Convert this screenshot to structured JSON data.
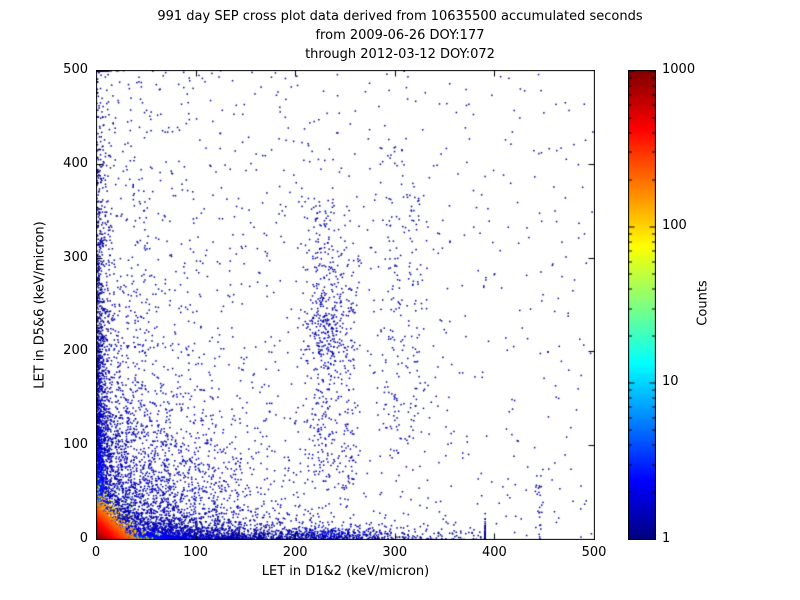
{
  "chart_data": {
    "type": "scatter",
    "title": "991 day SEP cross plot data derived from 10635500 accumulated seconds",
    "subtitle": [
      "from 2009-06-26 DOY:177",
      "through 2012-03-12 DOY:072"
    ],
    "xlabel": "LET in D1&2 (keV/micron)",
    "ylabel": "LET in D5&6 (keV/micron)",
    "xlim": [
      0,
      500
    ],
    "ylim": [
      0,
      500
    ],
    "xticks": [
      0,
      100,
      200,
      300,
      400,
      500
    ],
    "yticks": [
      0,
      100,
      200,
      300,
      400,
      500
    ],
    "grid": false,
    "background": "#ffffff",
    "axis_color": "#000000",
    "seed": 1337,
    "colorbar": {
      "label": "Counts",
      "scale": "log",
      "range": [
        1,
        1000
      ],
      "tick_values": [
        1000,
        100,
        10,
        1
      ],
      "tick_labels": [
        "1000",
        "100",
        "10",
        "1"
      ],
      "colormap": "jet",
      "jet_stops": [
        {
          "pos": 0.0,
          "color": "#00007f"
        },
        {
          "pos": 0.125,
          "color": "#0000ff"
        },
        {
          "pos": 0.375,
          "color": "#00ffff"
        },
        {
          "pos": 0.625,
          "color": "#ffff00"
        },
        {
          "pos": 0.875,
          "color": "#ff0000"
        },
        {
          "pos": 1.0,
          "color": "#7f0000"
        }
      ]
    },
    "density_features": [
      {
        "type": "uniform",
        "count": 650
      },
      {
        "type": "expx_uniformy",
        "count": 420,
        "scale_x": 170
      },
      {
        "type": "cloud",
        "count": 2500,
        "scale_x": 62,
        "scale_y": 62
      },
      {
        "type": "streak",
        "x": 22,
        "sx": 1.6,
        "yscale": 70,
        "count": 120
      },
      {
        "type": "streak",
        "x": 30,
        "sx": 1.8,
        "yscale": 95,
        "count": 100
      },
      {
        "type": "streak",
        "x": 38,
        "sx": 2.0,
        "yscale": 105,
        "count": 85
      },
      {
        "type": "streak",
        "x": 47,
        "sx": 2.2,
        "yscale": 115,
        "count": 75
      },
      {
        "type": "streak",
        "x": 58,
        "sx": 2.4,
        "yscale": 95,
        "count": 65
      },
      {
        "type": "streak",
        "x": 70,
        "sx": 2.6,
        "yscale": 85,
        "count": 55
      },
      {
        "type": "streak",
        "x": 84,
        "sx": 2.8,
        "yscale": 75,
        "count": 48
      },
      {
        "type": "streak",
        "x": 100,
        "sx": 3.0,
        "yscale": 65,
        "count": 42
      },
      {
        "type": "streak",
        "x": 119,
        "sx": 3.2,
        "yscale": 55,
        "count": 36
      },
      {
        "type": "streak",
        "x": 140,
        "sx": 3.4,
        "yscale": 48,
        "count": 30
      },
      {
        "type": "vcolumn",
        "x": 227,
        "sx": 9,
        "ymin": 60,
        "ymax": 365,
        "count": 300
      },
      {
        "type": "vcolumn",
        "x": 252,
        "sx": 6,
        "ymin": 40,
        "ymax": 300,
        "count": 130
      },
      {
        "type": "vcolumn",
        "x": 298,
        "sx": 8,
        "ymin": 80,
        "ymax": 430,
        "count": 130
      },
      {
        "type": "vcolumn",
        "x": 320,
        "sx": 6,
        "ymin": 100,
        "ymax": 380,
        "count": 70
      },
      {
        "type": "vcolumn",
        "x": 445,
        "sx": 3,
        "ymin": 0,
        "ymax": 70,
        "count": 25
      },
      {
        "type": "blob",
        "x": 232,
        "y": 228,
        "sx": 12,
        "sy": 26,
        "count": 170,
        "c": 0.04
      },
      {
        "type": "blob",
        "x": 236,
        "y": 5,
        "sx": 22,
        "sy": 4,
        "count": 260,
        "c": 0.1
      },
      {
        "type": "band",
        "axis": "x",
        "count": 2600,
        "decay": 110,
        "max_along": 390,
        "thick": 6,
        "cmax": 0.5,
        "color_decay": 55
      },
      {
        "type": "band",
        "axis": "y",
        "count": 2100,
        "decay": 150,
        "max_along": 500,
        "thick": 5,
        "cmax": 0.42,
        "color_decay": 70
      },
      {
        "type": "exp_core",
        "count": 7500,
        "scale_x": 7,
        "scale_y": 7
      }
    ]
  }
}
